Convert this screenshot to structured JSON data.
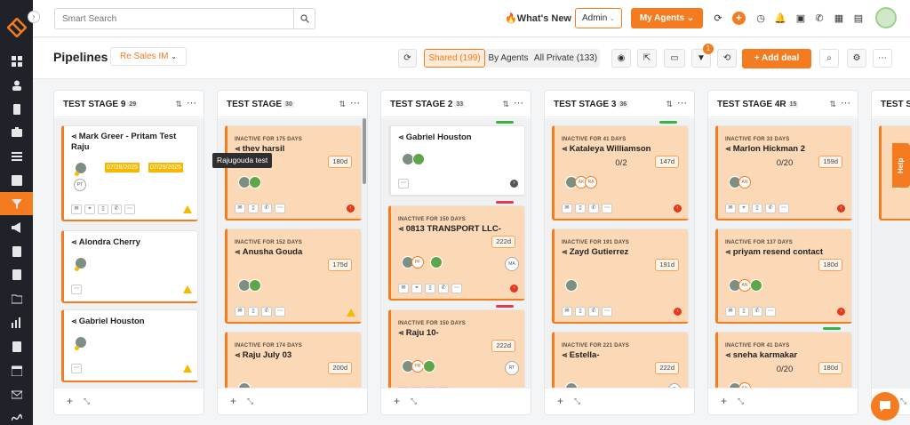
{
  "search": {
    "placeholder": "Smart Search"
  },
  "topbar": {
    "whats_new": "What's New",
    "role": "Admin",
    "my_agents": "My Agents"
  },
  "pipelines": {
    "title": "Pipelines",
    "selected_pipeline": "Re Sales IM",
    "shared_label": "Shared (199)",
    "by_agents_label": "By Agents",
    "all_private_label": "All Private (133)",
    "filter_badge": "1",
    "add_deal": "Add deal"
  },
  "tooltip": "Rajugouda test",
  "help_label": "Help",
  "columns": [
    {
      "title": "TEST STAGE 9",
      "count": "29",
      "cards": [
        {
          "name": "Mark Greer - Pritam Test Raju",
          "date1": "07/28/2025",
          "date2": "07/28/2025",
          "initials": "PT"
        },
        {
          "name": "Alondra Cherry"
        },
        {
          "name": "Gabriel Houston"
        }
      ]
    },
    {
      "title": "TEST STAGE",
      "count": "30",
      "cards": [
        {
          "inactive": "INACTIVE FOR 175 DAYS",
          "name": "thev harsil",
          "days": "180d"
        },
        {
          "inactive": "INACTIVE FOR 152 DAYS",
          "name": "Anusha Gouda",
          "days": "175d"
        },
        {
          "inactive": "INACTIVE FOR 174 DAYS",
          "name": "Raju July 03",
          "days": "200d"
        }
      ]
    },
    {
      "title": "TEST STAGE 2",
      "count": "33",
      "cards": [
        {
          "name": "Gabriel Houston"
        },
        {
          "inactive": "INACTIVE FOR 150 DAYS",
          "name": "0813 TRANSPORT LLC-",
          "days": "222d",
          "initials": "MA",
          "avatar_initials": "PF"
        },
        {
          "inactive": "INACTIVE FOR 150 DAYS",
          "name": "Raju 10-",
          "days": "222d",
          "initials": "RT",
          "avatar_initials": "PR"
        }
      ]
    },
    {
      "title": "TEST STAGE 3",
      "count": "36",
      "cards": [
        {
          "inactive": "INACTIVE FOR 41 DAYS",
          "name": "Kataleya Williamson",
          "days": "147d",
          "ratio": "0/2",
          "av1": "AK",
          "av2": "RA"
        },
        {
          "inactive": "INACTIVE FOR 191 DAYS",
          "name": "Zayd Gutierrez",
          "days": "191d"
        },
        {
          "inactive": "INACTIVE FOR 221 DAYS",
          "name": "Estella-",
          "days": "222d",
          "initials": "D"
        }
      ]
    },
    {
      "title": "TEST STAGE 4R",
      "count": "15",
      "cards": [
        {
          "inactive": "INACTIVE FOR 33 DAYS",
          "name": "Marlon Hickman 2",
          "days": "159d",
          "ratio": "0/20",
          "av1": "AN"
        },
        {
          "inactive": "INACTIVE FOR 137 DAYS",
          "name": "priyam resend contact",
          "days": "180d",
          "av1": "AN"
        },
        {
          "inactive": "INACTIVE FOR 41 DAYS",
          "name": "sneha karmakar",
          "days": "180d",
          "ratio": "0/20",
          "av1": "AN"
        }
      ]
    },
    {
      "title": "TEST S"
    }
  ],
  "colors": {
    "accent": "#f47b20",
    "card_peach": "#fcd9b6",
    "sidebar": "#1f2329"
  },
  "icons": [
    "logo-icon",
    "dashboard-icon",
    "contacts-icon",
    "documents-icon",
    "deals-icon",
    "list-icon",
    "profile-card-icon",
    "pipeline-filter-icon",
    "megaphone-icon",
    "notes-icon",
    "lists-icon",
    "folder-icon",
    "chart-icon",
    "file-icon",
    "calendar-icon",
    "mail-icon",
    "signature-icon"
  ]
}
